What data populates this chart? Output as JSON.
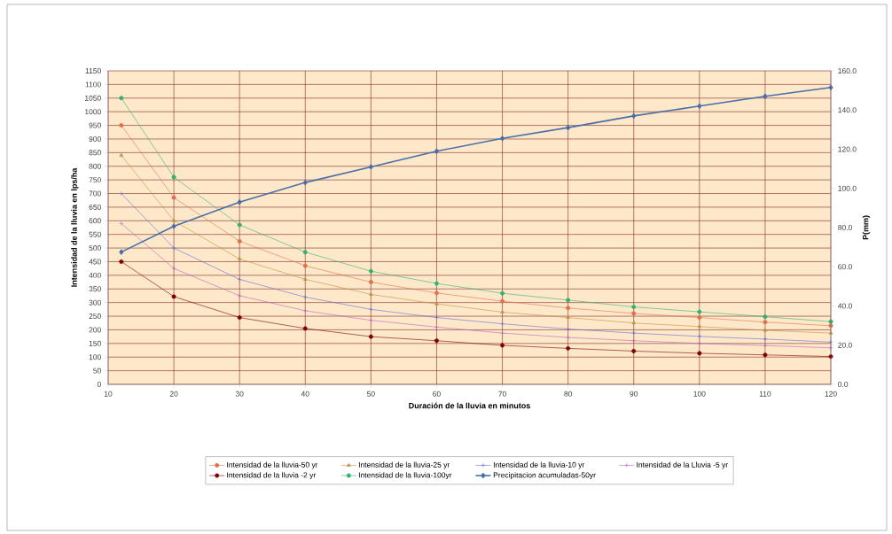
{
  "chart_data": {
    "type": "line",
    "xlabel": "Duración de la lluvia en minutos",
    "ylabel": "Intensidad  de la lluvia en lps/ha",
    "y2label": "P(mm)",
    "x": [
      12,
      20,
      30,
      40,
      50,
      60,
      70,
      80,
      90,
      100,
      110,
      120
    ],
    "xlim": [
      10,
      120
    ],
    "xticks": [
      10,
      20,
      30,
      40,
      50,
      60,
      70,
      80,
      90,
      100,
      110,
      120
    ],
    "ylim": [
      0,
      1150
    ],
    "yticks": [
      0,
      50,
      100,
      150,
      200,
      250,
      300,
      350,
      400,
      450,
      500,
      550,
      600,
      650,
      700,
      750,
      800,
      850,
      900,
      950,
      1000,
      1050,
      1100,
      1150
    ],
    "y2lim": [
      0,
      160
    ],
    "y2ticks": [
      {
        "value": 0,
        "label": "0.0"
      },
      {
        "value": 20,
        "label": "20.0"
      },
      {
        "value": 40,
        "label": "40.0"
      },
      {
        "value": 60,
        "label": "60.0"
      },
      {
        "value": 80,
        "label": "80.0"
      },
      {
        "value": 100,
        "label": "100.0"
      },
      {
        "value": 120,
        "label": "120.0"
      },
      {
        "value": 140,
        "label": "140.0"
      },
      {
        "value": 160,
        "label": "160.0"
      }
    ],
    "grid": true,
    "legend": "bottom",
    "series": [
      {
        "name": "Intensidad de la lluvia-50  yr",
        "color": "#e0704a",
        "marker": "circle",
        "values": [
          950,
          685,
          525,
          435,
          375,
          335,
          305,
          280,
          260,
          245,
          228,
          215
        ]
      },
      {
        "name": "Intensidad de la lluvia-25  yr",
        "color": "#c09040",
        "marker": "triangle",
        "values": [
          840,
          600,
          460,
          385,
          330,
          295,
          265,
          245,
          225,
          212,
          198,
          188
        ]
      },
      {
        "name": "Intensidad de la lluvia-10  yr",
        "color": "#6a6ad8",
        "marker": "cross",
        "values": [
          700,
          500,
          385,
          320,
          275,
          245,
          222,
          203,
          188,
          176,
          166,
          155
        ]
      },
      {
        "name": "Intensidad de la Lluvia -5 yr",
        "color": "#c060c0",
        "marker": "cross",
        "values": [
          590,
          425,
          325,
          270,
          235,
          210,
          188,
          172,
          160,
          150,
          142,
          134
        ]
      },
      {
        "name": "Intensidad de la lluvia -2  yr",
        "color": "#800000",
        "marker": "circle",
        "values": [
          450,
          322,
          245,
          205,
          175,
          160,
          143,
          132,
          122,
          114,
          108,
          102
        ]
      },
      {
        "name": "Intensidad de la lluvia-100yr",
        "color": "#33b070",
        "marker": "circle",
        "values": [
          1050,
          760,
          585,
          485,
          415,
          370,
          334,
          309,
          284,
          266,
          248,
          230
        ]
      },
      {
        "name": "Precipitacion acumuladas-50yr",
        "color": "#4a6ea8",
        "marker": "diamond",
        "axis": "y2",
        "values": [
          67.5,
          80.7,
          93,
          103,
          111,
          119,
          125.5,
          131,
          137,
          142,
          147,
          151.5
        ]
      }
    ]
  }
}
